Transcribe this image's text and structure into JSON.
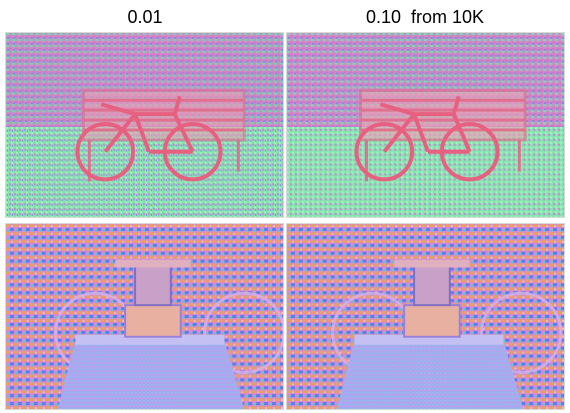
{
  "columns": [
    {
      "title": "0.01"
    },
    {
      "title": "0.10  from 10K"
    }
  ],
  "rows": [
    {
      "scene": "bicycle-leaning-on-bench",
      "panels": [
        "bicycle-normals-0.01",
        "bicycle-normals-0.10"
      ]
    },
    {
      "scene": "table-with-cloth-and-bicycle-behind",
      "panels": [
        "table-normals-0.01",
        "table-normals-0.10"
      ]
    }
  ],
  "palette": {
    "green": "#7fe6a8",
    "magenta": "#e06fd0",
    "blue": "#5c7cf0",
    "pink": "#f08fb0",
    "lavender": "#b8a6f0",
    "orange": "#e8a060",
    "teal": "#60c8c8",
    "bike": "#e86080"
  }
}
